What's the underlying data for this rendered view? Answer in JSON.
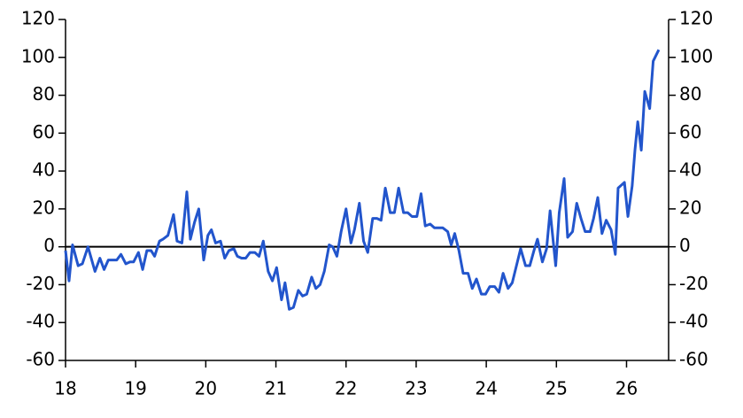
{
  "chart_data": {
    "type": "line",
    "x": [
      18.0,
      18.05,
      18.1,
      18.18,
      18.24,
      18.32,
      18.42,
      18.49,
      18.55,
      18.61,
      18.68,
      18.73,
      18.79,
      18.86,
      18.92,
      18.97,
      19.04,
      19.1,
      19.16,
      19.22,
      19.27,
      19.34,
      19.39,
      19.46,
      19.54,
      19.59,
      19.66,
      19.73,
      19.78,
      19.84,
      19.9,
      19.97,
      20.03,
      20.08,
      20.14,
      20.21,
      20.27,
      20.33,
      20.4,
      20.45,
      20.51,
      20.57,
      20.63,
      20.7,
      20.76,
      20.82,
      20.89,
      20.95,
      21.01,
      21.08,
      21.13,
      21.19,
      21.25,
      21.32,
      21.38,
      21.44,
      21.51,
      21.57,
      21.63,
      21.69,
      21.76,
      21.81,
      21.87,
      21.93,
      22.0,
      22.07,
      22.12,
      22.19,
      22.25,
      22.31,
      22.38,
      22.44,
      22.5,
      22.56,
      22.63,
      22.69,
      22.75,
      22.82,
      22.88,
      22.94,
      23.01,
      23.07,
      23.13,
      23.2,
      23.26,
      23.32,
      23.38,
      23.45,
      23.5,
      23.55,
      23.61,
      23.67,
      23.74,
      23.8,
      23.86,
      23.93,
      23.99,
      24.05,
      24.12,
      24.18,
      24.24,
      24.31,
      24.37,
      24.43,
      24.49,
      24.56,
      24.62,
      24.68,
      24.73,
      24.8,
      24.86,
      24.91,
      24.99,
      25.04,
      25.11,
      25.16,
      25.23,
      25.29,
      25.35,
      25.41,
      25.48,
      25.53,
      25.59,
      25.65,
      25.71,
      25.78,
      25.84,
      25.88,
      25.97,
      26.02,
      26.08,
      26.12,
      26.16,
      26.21,
      26.26,
      26.33,
      26.38,
      26.46
    ],
    "series": [
      {
        "color": "#2255cc",
        "values": [
          -2,
          -18,
          1,
          -10,
          -9,
          0,
          -13,
          -6,
          -12,
          -7,
          -7,
          -7,
          -4,
          -9,
          -8,
          -8,
          -3,
          -12,
          -2,
          -2,
          -5,
          3,
          4,
          6,
          17,
          3,
          2,
          29,
          4,
          13,
          20,
          -7,
          6,
          9,
          2,
          3,
          -6,
          -2,
          -1,
          -5,
          -6,
          -6,
          -3,
          -3,
          -5,
          3,
          -13,
          -18,
          -11,
          -28,
          -19,
          -33,
          -32,
          -23,
          -26,
          -25,
          -16,
          -22,
          -20,
          -13,
          1,
          0,
          -5,
          8,
          20,
          2,
          9,
          23,
          3,
          -3,
          15,
          15,
          14,
          31,
          18,
          18,
          31,
          18,
          18,
          16,
          16,
          28,
          11,
          12,
          10,
          10,
          10,
          8,
          1,
          7,
          -2,
          -14,
          -14,
          -22,
          -17,
          -25,
          -25,
          -21,
          -21,
          -24,
          -14,
          -22,
          -19,
          -10,
          -1,
          -10,
          -10,
          -2,
          4,
          -8,
          -1,
          19,
          -10,
          18,
          36,
          5,
          8,
          23,
          15,
          8,
          8,
          15,
          26,
          7,
          14,
          9,
          -4,
          31,
          34,
          16,
          32,
          51,
          66,
          51,
          82,
          73,
          98,
          104
        ]
      }
    ],
    "xlim": [
      18,
      26.6
    ],
    "xticks": [
      18,
      19,
      20,
      21,
      22,
      23,
      24,
      25,
      26
    ],
    "ylim": [
      -60,
      120
    ],
    "yticks": [
      -60,
      -40,
      -20,
      0,
      20,
      40,
      60,
      80,
      100,
      120
    ],
    "y2lim": [
      -60,
      120
    ],
    "y2ticks": [
      -60,
      -40,
      -20,
      0,
      20,
      40,
      60,
      80,
      100,
      120
    ]
  }
}
